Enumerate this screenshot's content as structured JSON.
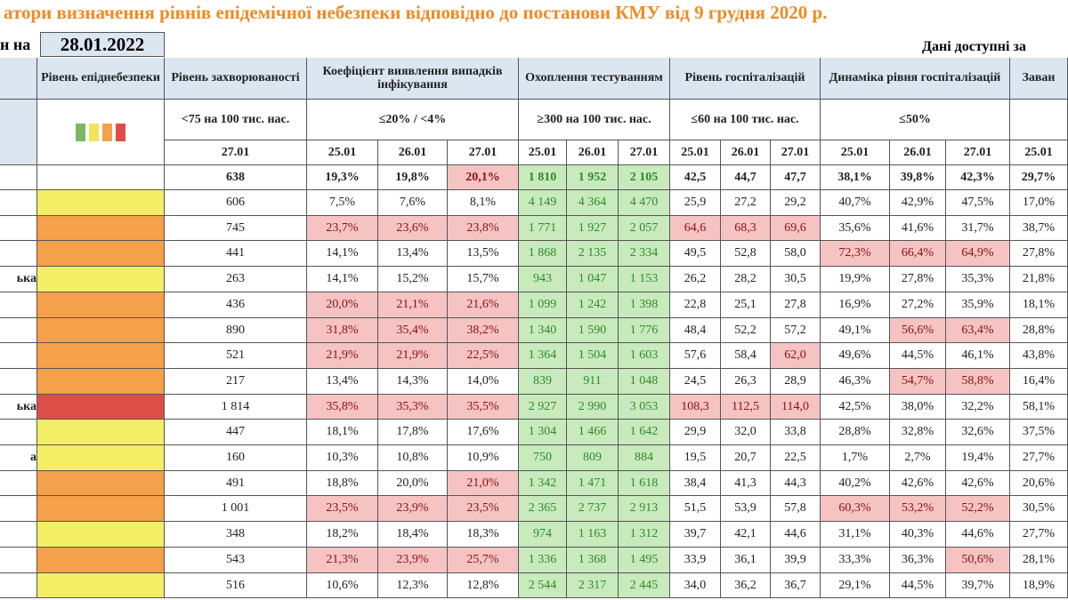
{
  "header": {
    "title": "атори визначення рівнів епідемічної небезпеки відповідно до постанови КМУ від 9 грудня 2020 р.",
    "date_label": "н на",
    "date": "28.01.2022",
    "note": "Дані доступні за"
  },
  "table": {
    "level_colors": {
      "yellow": "#f4ee66",
      "orange": "#f5a04a",
      "red": "#dd4e48"
    },
    "red_cell": "#f6c3c3",
    "green_cell": "#c8eabc",
    "green_columns": [
      4,
      5,
      6
    ],
    "columns": [
      {
        "title": "Рівень епіднебезпеки",
        "swatches": [
          "#7cb861",
          "#f0e45a",
          "#f5a04a",
          "#dd4e48"
        ]
      },
      {
        "title": "Рівень захворюваності",
        "criterion": "<75 на 100 тис. нас.",
        "dates": [
          "27.01"
        ]
      },
      {
        "title": "Коефіцієнт виявлення випадків інфікування",
        "criterion": "≤20% / <4%",
        "dates": [
          "25.01",
          "26.01",
          "27.01"
        ]
      },
      {
        "title": "Охоплення тестуванням",
        "criterion": "≥300 на 100 тис. нас.",
        "dates": [
          "25.01",
          "26.01",
          "27.01"
        ]
      },
      {
        "title": "Рівень госпіталізацій",
        "criterion": "≤60 на 100 тис. нас.",
        "dates": [
          "25.01",
          "26.01",
          "27.01"
        ]
      },
      {
        "title": "Динаміка рівня госпіталізацій",
        "criterion": "≤50%",
        "dates": [
          "25.01",
          "26.01",
          "27.01"
        ]
      },
      {
        "title": "Заван",
        "dates": [
          "25.01"
        ]
      }
    ],
    "total": {
      "cells": [
        "638",
        "19,3%",
        "19,8%",
        "20,1%",
        "1 810",
        "1 952",
        "2 105",
        "42,5",
        "44,7",
        "47,7",
        "38,1%",
        "39,8%",
        "42,3%",
        "29,7%"
      ],
      "red": [
        3
      ]
    },
    "rows": [
      {
        "level": "yellow",
        "cells": [
          "606",
          "7,5%",
          "7,6%",
          "8,1%",
          "4 149",
          "4 364",
          "4 470",
          "25,9",
          "27,2",
          "29,2",
          "40,7%",
          "42,9%",
          "47,5%",
          "17,0%"
        ],
        "red": []
      },
      {
        "level": "orange",
        "cells": [
          "745",
          "23,7%",
          "23,6%",
          "23,8%",
          "1 771",
          "1 927",
          "2 057",
          "64,6",
          "68,3",
          "69,6",
          "35,6%",
          "41,6%",
          "31,7%",
          "38,7%"
        ],
        "red": [
          1,
          2,
          3,
          7,
          8,
          9
        ]
      },
      {
        "level": "orange",
        "cells": [
          "441",
          "14,1%",
          "13,4%",
          "13,5%",
          "1 868",
          "2 135",
          "2 334",
          "49,5",
          "52,8",
          "58,0",
          "72,3%",
          "66,4%",
          "64,9%",
          "27,8%"
        ],
        "red": [
          10,
          11,
          12
        ]
      },
      {
        "label": "ька",
        "level": "yellow",
        "cells": [
          "263",
          "14,1%",
          "15,2%",
          "15,7%",
          "943",
          "1 047",
          "1 153",
          "26,2",
          "28,2",
          "30,5",
          "19,9%",
          "27,8%",
          "35,3%",
          "21,8%"
        ],
        "red": []
      },
      {
        "level": "orange",
        "cells": [
          "436",
          "20,0%",
          "21,1%",
          "21,6%",
          "1 099",
          "1 242",
          "1 398",
          "22,8",
          "25,1",
          "27,8",
          "16,9%",
          "27,2%",
          "35,9%",
          "18,1%"
        ],
        "red": [
          1,
          2,
          3
        ]
      },
      {
        "level": "orange",
        "cells": [
          "890",
          "31,8%",
          "35,4%",
          "38,2%",
          "1 340",
          "1 590",
          "1 776",
          "48,4",
          "52,2",
          "57,2",
          "49,1%",
          "56,6%",
          "63,4%",
          "28,8%"
        ],
        "red": [
          1,
          2,
          3,
          11,
          12
        ]
      },
      {
        "level": "orange",
        "cells": [
          "521",
          "21,9%",
          "21,9%",
          "22,5%",
          "1 364",
          "1 504",
          "1 603",
          "57,6",
          "58,4",
          "62,0",
          "49,6%",
          "44,5%",
          "46,1%",
          "43,8%"
        ],
        "red": [
          1,
          2,
          3,
          9
        ]
      },
      {
        "level": "orange",
        "cells": [
          "217",
          "13,4%",
          "14,3%",
          "14,0%",
          "839",
          "911",
          "1 048",
          "24,5",
          "26,3",
          "28,9",
          "46,3%",
          "54,7%",
          "58,8%",
          "16,4%"
        ],
        "red": [
          11,
          12
        ]
      },
      {
        "label": "ька",
        "level": "red",
        "cells": [
          "1 814",
          "35,8%",
          "35,3%",
          "35,5%",
          "2 927",
          "2 990",
          "3 053",
          "108,3",
          "112,5",
          "114,0",
          "42,5%",
          "38,0%",
          "32,2%",
          "58,1%"
        ],
        "red": [
          1,
          2,
          3,
          7,
          8,
          9
        ]
      },
      {
        "level": "yellow",
        "cells": [
          "447",
          "18,1%",
          "17,8%",
          "17,6%",
          "1 304",
          "1 466",
          "1 642",
          "29,9",
          "32,0",
          "33,8",
          "28,8%",
          "32,8%",
          "32,6%",
          "37,5%"
        ],
        "red": []
      },
      {
        "label": "а",
        "level": "yellow",
        "cells": [
          "160",
          "10,3%",
          "10,8%",
          "10,9%",
          "750",
          "809",
          "884",
          "19,5",
          "20,7",
          "22,5",
          "1,7%",
          "2,7%",
          "19,4%",
          "27,7%"
        ],
        "red": []
      },
      {
        "level": "orange",
        "cells": [
          "491",
          "18,8%",
          "20,0%",
          "21,0%",
          "1 342",
          "1 471",
          "1 618",
          "38,4",
          "41,3",
          "44,3",
          "40,2%",
          "42,6%",
          "42,6%",
          "20,6%"
        ],
        "red": [
          3
        ]
      },
      {
        "level": "orange",
        "cells": [
          "1 001",
          "23,5%",
          "23,9%",
          "23,5%",
          "2 365",
          "2 737",
          "2 913",
          "51,5",
          "53,9",
          "57,8",
          "60,3%",
          "53,2%",
          "52,2%",
          "30,5%"
        ],
        "red": [
          1,
          2,
          3,
          10,
          11,
          12
        ]
      },
      {
        "level": "yellow",
        "cells": [
          "348",
          "18,2%",
          "18,4%",
          "18,3%",
          "974",
          "1 163",
          "1 312",
          "39,7",
          "42,1",
          "44,6",
          "31,1%",
          "40,3%",
          "44,6%",
          "27,7%"
        ],
        "red": []
      },
      {
        "level": "orange",
        "cells": [
          "543",
          "21,3%",
          "23,9%",
          "25,7%",
          "1 336",
          "1 368",
          "1 495",
          "33,9",
          "36,1",
          "39,9",
          "33,3%",
          "36,3%",
          "50,6%",
          "28,1%"
        ],
        "red": [
          1,
          2,
          3,
          12
        ]
      },
      {
        "level": "yellow",
        "cells": [
          "516",
          "10,6%",
          "12,3%",
          "12,8%",
          "2 544",
          "2 317",
          "2 445",
          "34,0",
          "36,2",
          "36,7",
          "29,1%",
          "44,5%",
          "39,7%",
          "18,9%"
        ],
        "red": []
      }
    ]
  }
}
